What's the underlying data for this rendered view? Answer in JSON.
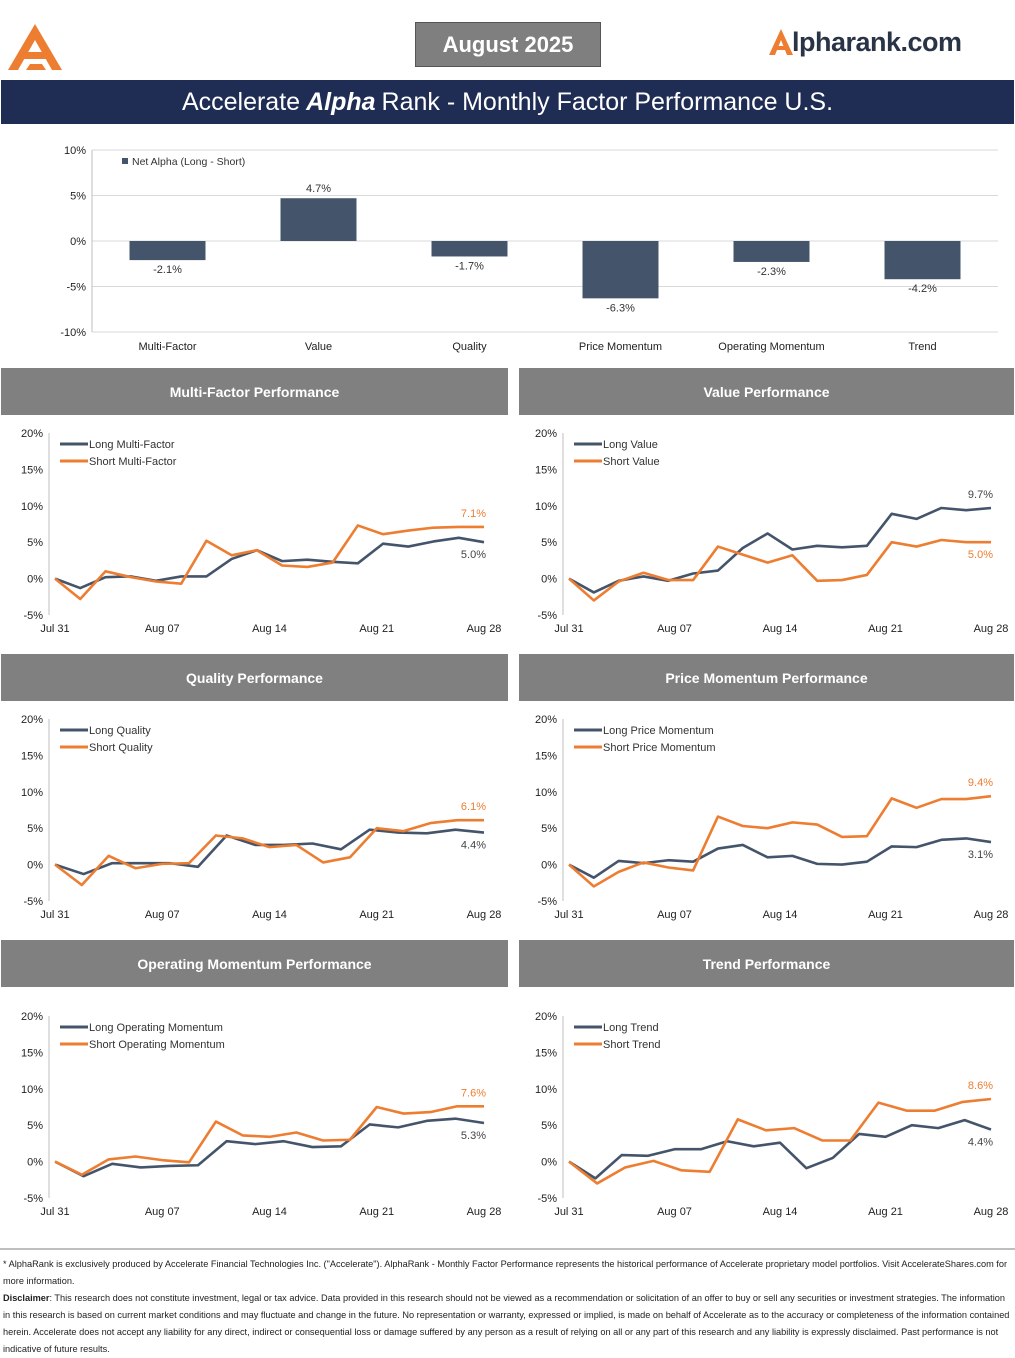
{
  "header": {
    "date_label": "August 2025",
    "site_logo_text": "lpharank.com",
    "title_prefix": "Accelerate",
    "title_emphasis": "Alpha",
    "title_suffix": "Rank - Monthly Factor Performance U.S."
  },
  "colors": {
    "navy": "#44546a",
    "orange": "#ed7d31",
    "banner": "#1f2d55",
    "panel_header": "#808080"
  },
  "icons": {
    "brand_logo": "accelerate-a-logo-icon",
    "site_logo": "alpharank-a-logo-icon"
  },
  "chart_data": [
    {
      "type": "bar",
      "legend": "Net Alpha (Long - Short)",
      "legend_position": "top-left",
      "categories": [
        "Multi-Factor",
        "Value",
        "Quality",
        "Price Momentum",
        "Operating Momentum",
        "Trend"
      ],
      "values": [
        -2.1,
        4.7,
        -1.7,
        -6.3,
        -2.3,
        -4.2
      ],
      "value_labels": [
        "-2.1%",
        "4.7%",
        "-1.7%",
        "-6.3%",
        "-2.3%",
        "-4.2%"
      ],
      "ylim": [
        -10,
        10
      ],
      "yticks": [
        "10%",
        "5%",
        "0%",
        "-5%",
        "-10%"
      ],
      "grid": true
    },
    {
      "type": "line",
      "title": "Multi-Factor Performance",
      "legend_position": "top-left",
      "x_ticks": [
        "Jul 31",
        "Aug 07",
        "Aug 14",
        "Aug 21",
        "Aug 28"
      ],
      "ylim": [
        -5,
        20
      ],
      "yticks": [
        "20%",
        "15%",
        "10%",
        "5%",
        "0%",
        "-5%"
      ],
      "series": [
        {
          "name": "Long Multi-Factor",
          "end_label": "5.0%",
          "values": [
            0,
            -1.3,
            0.2,
            0.3,
            -0.3,
            0.3,
            0.3,
            2.7,
            3.9,
            2.4,
            2.6,
            2.3,
            2.1,
            4.8,
            4.4,
            5.1,
            5.6,
            5.0
          ]
        },
        {
          "name": "Short Multi-Factor",
          "end_label": "7.1%",
          "values": [
            0,
            -2.8,
            1.0,
            0.2,
            -0.4,
            -0.7,
            5.2,
            3.2,
            3.9,
            1.8,
            1.6,
            2.2,
            7.3,
            6.1,
            6.6,
            7.0,
            7.1,
            7.1
          ]
        }
      ]
    },
    {
      "type": "line",
      "title": "Value Performance",
      "legend_position": "top-left",
      "x_ticks": [
        "Jul 31",
        "Aug 07",
        "Aug 14",
        "Aug 21",
        "Aug 28"
      ],
      "ylim": [
        -5,
        20
      ],
      "yticks": [
        "20%",
        "15%",
        "10%",
        "5%",
        "0%",
        "-5%"
      ],
      "series": [
        {
          "name": "Long Value",
          "end_label": "9.7%",
          "values": [
            0,
            -1.9,
            -0.3,
            0.3,
            -0.3,
            0.7,
            1.1,
            4.2,
            6.2,
            4.0,
            4.5,
            4.3,
            4.5,
            8.9,
            8.2,
            9.7,
            9.4,
            9.7
          ]
        },
        {
          "name": "Short Value",
          "end_label": "5.0%",
          "values": [
            0,
            -3.0,
            -0.4,
            0.8,
            -0.2,
            -0.2,
            4.4,
            3.3,
            2.2,
            3.2,
            -0.3,
            -0.2,
            0.5,
            5.0,
            4.4,
            5.3,
            5.0,
            5.0
          ]
        }
      ]
    },
    {
      "type": "line",
      "title": "Quality Performance",
      "legend_position": "top-left",
      "x_ticks": [
        "Jul 31",
        "Aug 07",
        "Aug 14",
        "Aug 21",
        "Aug 28"
      ],
      "ylim": [
        -5,
        20
      ],
      "yticks": [
        "20%",
        "15%",
        "10%",
        "5%",
        "0%",
        "-5%"
      ],
      "series": [
        {
          "name": "Long Quality",
          "end_label": "4.4%",
          "values": [
            0,
            -1.3,
            0.2,
            0.2,
            0.2,
            -0.3,
            4.0,
            2.7,
            2.7,
            2.9,
            2.1,
            4.8,
            4.4,
            4.3,
            4.8,
            4.4
          ]
        },
        {
          "name": "Short Quality",
          "end_label": "6.1%",
          "values": [
            0,
            -2.8,
            1.2,
            -0.5,
            0.1,
            0.2,
            4.0,
            3.6,
            2.4,
            2.7,
            0.3,
            1.0,
            5.0,
            4.6,
            5.7,
            6.1,
            6.1
          ]
        }
      ]
    },
    {
      "type": "line",
      "title": "Price Momentum Performance",
      "legend_position": "top-left",
      "x_ticks": [
        "Jul 31",
        "Aug 07",
        "Aug 14",
        "Aug 21",
        "Aug 28"
      ],
      "ylim": [
        -5,
        20
      ],
      "yticks": [
        "20%",
        "15%",
        "10%",
        "5%",
        "0%",
        "-5%"
      ],
      "series": [
        {
          "name": "Long Price Momentum",
          "end_label": "3.1%",
          "values": [
            0,
            -1.8,
            0.5,
            0.2,
            0.6,
            0.4,
            2.2,
            2.7,
            1.0,
            1.2,
            0.1,
            0.0,
            0.4,
            2.5,
            2.4,
            3.4,
            3.6,
            3.1
          ]
        },
        {
          "name": "Short Price Momentum",
          "end_label": "9.4%",
          "values": [
            0,
            -3.0,
            -1.0,
            0.3,
            -0.4,
            -0.8,
            6.6,
            5.3,
            5.0,
            5.8,
            5.5,
            3.8,
            3.9,
            9.1,
            7.8,
            9.0,
            9.0,
            9.4
          ]
        }
      ]
    },
    {
      "type": "line",
      "title": "Operating Momentum Performance",
      "legend_position": "top-left",
      "x_ticks": [
        "Jul 31",
        "Aug 07",
        "Aug 14",
        "Aug 21",
        "Aug 28"
      ],
      "ylim": [
        -5,
        20
      ],
      "yticks": [
        "20%",
        "15%",
        "10%",
        "5%",
        "0%",
        "-5%"
      ],
      "series": [
        {
          "name": "Long Operating Momentum",
          "end_label": "5.3%",
          "values": [
            0,
            -2.0,
            -0.3,
            -0.8,
            -0.6,
            -0.5,
            2.8,
            2.4,
            2.8,
            2.0,
            2.1,
            5.1,
            4.7,
            5.6,
            5.9,
            5.3
          ]
        },
        {
          "name": "Short Operating Momentum",
          "end_label": "7.6%",
          "values": [
            0,
            -1.8,
            0.3,
            0.7,
            0.2,
            -0.1,
            5.5,
            3.6,
            3.4,
            4.0,
            2.9,
            3.0,
            7.5,
            6.6,
            6.8,
            7.6,
            7.6
          ]
        }
      ]
    },
    {
      "type": "line",
      "title": "Trend Performance",
      "legend_position": "top-left",
      "x_ticks": [
        "Jul 31",
        "Aug 07",
        "Aug 14",
        "Aug 21",
        "Aug 28"
      ],
      "ylim": [
        -5,
        20
      ],
      "yticks": [
        "20%",
        "15%",
        "10%",
        "5%",
        "0%",
        "-5%"
      ],
      "series": [
        {
          "name": "Long Trend",
          "end_label": "4.4%",
          "values": [
            0,
            -2.3,
            0.9,
            0.8,
            1.7,
            1.7,
            2.8,
            2.1,
            2.6,
            -0.9,
            0.5,
            3.8,
            3.4,
            5.0,
            4.6,
            5.7,
            4.4
          ]
        },
        {
          "name": "Short Trend",
          "end_label": "8.6%",
          "values": [
            0,
            -3.0,
            -0.8,
            0.1,
            -1.2,
            -1.4,
            5.8,
            4.3,
            4.6,
            2.9,
            2.9,
            8.1,
            7.0,
            7.0,
            8.2,
            8.6
          ]
        }
      ]
    }
  ],
  "disclaimer": {
    "line1": "* AlphaRank is exclusively produced by Accelerate Financial Technologies Inc. (\"Accelerate\"). AlphaRank - Monthly Factor Performance represents the historical performance of Accelerate proprietary model portfolios. Visit AccelerateShares.com for more information.",
    "label": "Disclaimer",
    "body": ": This research does not constitute investment, legal or tax advice. Data provided in this research should not be viewed as a recommendation or solicitation of an offer to buy or sell any securities or investment strategies. The information in this research is based on current market conditions and may fluctuate and change in the future. No representation or warranty, expressed or implied, is made on behalf of Accelerate as to the accuracy or completeness of the information contained herein. Accelerate does not accept any liability for any direct, indirect or consequential loss or damage suffered by any person as a result of relying on all or any part of this research and any liability is expressly disclaimed. Past performance is not indicative of future results."
  }
}
